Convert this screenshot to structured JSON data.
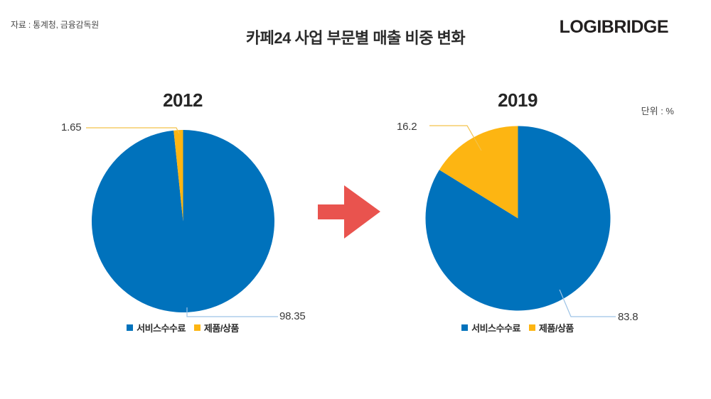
{
  "meta": {
    "source": "자료 : 통계청, 금융감독원",
    "title": "카페24 사업 부문별 매출 비중 변화",
    "logo": "LOGIBRIDGE",
    "unit": "단위 : %"
  },
  "colors": {
    "blue": "#0072BC",
    "yellow": "#FDB512",
    "arrow_red": "#E9534E",
    "leader_blue": "#9DC3E6",
    "leader_yellow": "#F3C24B"
  },
  "chart_data": [
    {
      "type": "pie",
      "title": "2012",
      "labels": [
        "서비스수수료",
        "제품/상품"
      ],
      "values": [
        98.35,
        1.65
      ],
      "value_labels": [
        "98.35",
        "1.65"
      ],
      "colors": [
        "#0072BC",
        "#FDB512"
      ],
      "start_angle": "12 o'clock, clockwise",
      "legend_position": "bottom"
    },
    {
      "type": "pie",
      "title": "2019",
      "labels": [
        "서비스수수료",
        "제품/상품"
      ],
      "values": [
        83.8,
        16.2
      ],
      "value_labels": [
        "83.8",
        "16.2"
      ],
      "colors": [
        "#0072BC",
        "#FDB512"
      ],
      "start_angle": "12 o'clock, clockwise",
      "legend_position": "bottom"
    }
  ]
}
